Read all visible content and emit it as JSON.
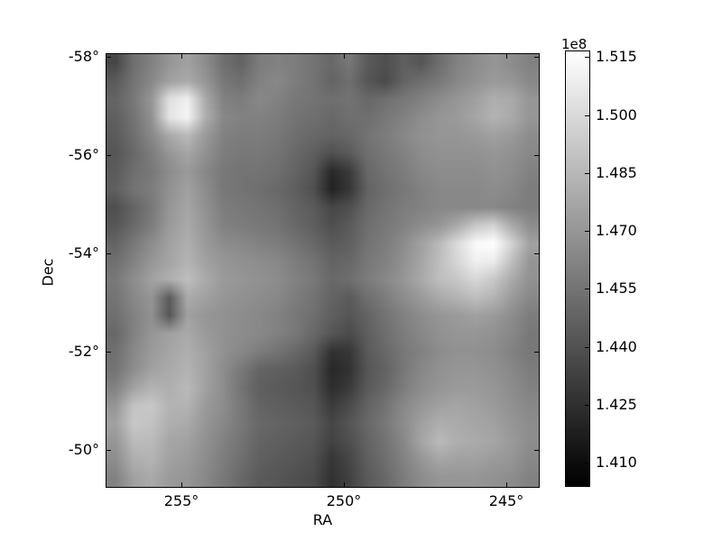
{
  "colors": {
    "foreground": "#000000",
    "background": "#ffffff"
  },
  "chart_data": {
    "type": "heatmap",
    "title": "",
    "xlabel": "RA",
    "ylabel": "Dec",
    "colormap": "gray",
    "grid_on": false,
    "x_axis": {
      "range": [
        257.3,
        244.0
      ],
      "ticks": [
        {
          "value": 255,
          "label": "255°"
        },
        {
          "value": 250,
          "label": "250°"
        },
        {
          "value": 245,
          "label": "245°"
        }
      ]
    },
    "y_axis": {
      "range": [
        -58.05,
        -49.25
      ],
      "ticks": [
        {
          "value": -58,
          "label": "-58°"
        },
        {
          "value": -56,
          "label": "-56°"
        },
        {
          "value": -54,
          "label": "-54°"
        },
        {
          "value": -52,
          "label": "-52°"
        },
        {
          "value": -50,
          "label": "-50°"
        }
      ]
    },
    "colorbar": {
      "offset_label": "1e8",
      "value_scale": "1e8",
      "vmin": 1.404,
      "vmax": 1.5165,
      "ticks": [
        {
          "value": 1.515,
          "label": "1.515"
        },
        {
          "value": 1.5,
          "label": "1.500"
        },
        {
          "value": 1.485,
          "label": "1.485"
        },
        {
          "value": 1.47,
          "label": "1.470"
        },
        {
          "value": 1.455,
          "label": "1.455"
        },
        {
          "value": 1.44,
          "label": "1.440"
        },
        {
          "value": 1.425,
          "label": "1.425"
        },
        {
          "value": 1.41,
          "label": "1.410"
        }
      ]
    },
    "grid_units": "1e8",
    "grid_rows": 24,
    "grid_cols": 24,
    "grid": [
      [
        1.435,
        1.453,
        1.461,
        1.47,
        1.475,
        1.466,
        1.453,
        1.448,
        1.459,
        1.461,
        1.459,
        1.455,
        1.45,
        1.457,
        1.444,
        1.439,
        1.446,
        1.442,
        1.453,
        1.461,
        1.466,
        1.47,
        1.466,
        1.461
      ],
      [
        1.444,
        1.455,
        1.464,
        1.475,
        1.479,
        1.47,
        1.457,
        1.453,
        1.461,
        1.464,
        1.459,
        1.455,
        1.448,
        1.453,
        1.442,
        1.437,
        1.448,
        1.453,
        1.457,
        1.464,
        1.468,
        1.472,
        1.47,
        1.464
      ],
      [
        1.448,
        1.457,
        1.47,
        1.503,
        1.51,
        1.479,
        1.461,
        1.459,
        1.464,
        1.461,
        1.457,
        1.455,
        1.453,
        1.455,
        1.45,
        1.453,
        1.457,
        1.461,
        1.466,
        1.47,
        1.475,
        1.481,
        1.479,
        1.47
      ],
      [
        1.446,
        1.455,
        1.468,
        1.505,
        1.512,
        1.481,
        1.464,
        1.461,
        1.461,
        1.459,
        1.455,
        1.453,
        1.45,
        1.453,
        1.453,
        1.457,
        1.461,
        1.466,
        1.47,
        1.472,
        1.477,
        1.483,
        1.479,
        1.47
      ],
      [
        1.444,
        1.453,
        1.464,
        1.479,
        1.486,
        1.472,
        1.461,
        1.459,
        1.459,
        1.457,
        1.453,
        1.45,
        1.448,
        1.45,
        1.455,
        1.459,
        1.464,
        1.468,
        1.47,
        1.47,
        1.472,
        1.475,
        1.472,
        1.466
      ],
      [
        1.442,
        1.45,
        1.459,
        1.47,
        1.477,
        1.468,
        1.459,
        1.457,
        1.457,
        1.455,
        1.45,
        1.446,
        1.439,
        1.444,
        1.453,
        1.457,
        1.461,
        1.466,
        1.468,
        1.468,
        1.468,
        1.47,
        1.468,
        1.464
      ],
      [
        1.444,
        1.453,
        1.457,
        1.466,
        1.472,
        1.464,
        1.457,
        1.455,
        1.455,
        1.453,
        1.448,
        1.442,
        1.422,
        1.43,
        1.45,
        1.455,
        1.459,
        1.464,
        1.466,
        1.466,
        1.466,
        1.468,
        1.466,
        1.461
      ],
      [
        1.446,
        1.455,
        1.459,
        1.468,
        1.475,
        1.466,
        1.457,
        1.455,
        1.453,
        1.45,
        1.446,
        1.439,
        1.419,
        1.428,
        1.448,
        1.453,
        1.457,
        1.461,
        1.464,
        1.464,
        1.464,
        1.466,
        1.464,
        1.459
      ],
      [
        1.439,
        1.448,
        1.457,
        1.47,
        1.477,
        1.468,
        1.459,
        1.457,
        1.455,
        1.453,
        1.448,
        1.444,
        1.435,
        1.439,
        1.45,
        1.455,
        1.459,
        1.461,
        1.464,
        1.464,
        1.464,
        1.464,
        1.461,
        1.459
      ],
      [
        1.442,
        1.45,
        1.459,
        1.472,
        1.479,
        1.47,
        1.461,
        1.459,
        1.457,
        1.455,
        1.45,
        1.446,
        1.439,
        1.444,
        1.453,
        1.457,
        1.461,
        1.466,
        1.47,
        1.479,
        1.492,
        1.497,
        1.479,
        1.466
      ],
      [
        1.448,
        1.457,
        1.466,
        1.475,
        1.481,
        1.472,
        1.466,
        1.464,
        1.461,
        1.459,
        1.455,
        1.45,
        1.444,
        1.446,
        1.455,
        1.459,
        1.466,
        1.475,
        1.486,
        1.501,
        1.514,
        1.517,
        1.497,
        1.475
      ],
      [
        1.453,
        1.461,
        1.47,
        1.477,
        1.483,
        1.475,
        1.47,
        1.468,
        1.466,
        1.464,
        1.459,
        1.455,
        1.448,
        1.45,
        1.457,
        1.461,
        1.468,
        1.477,
        1.488,
        1.499,
        1.51,
        1.508,
        1.488,
        1.47
      ],
      [
        1.457,
        1.466,
        1.475,
        1.481,
        1.488,
        1.479,
        1.472,
        1.47,
        1.468,
        1.466,
        1.461,
        1.457,
        1.45,
        1.453,
        1.459,
        1.464,
        1.47,
        1.479,
        1.488,
        1.492,
        1.499,
        1.492,
        1.479,
        1.468
      ],
      [
        1.455,
        1.464,
        1.47,
        1.444,
        1.479,
        1.475,
        1.47,
        1.468,
        1.466,
        1.464,
        1.459,
        1.455,
        1.448,
        1.444,
        1.453,
        1.459,
        1.466,
        1.472,
        1.479,
        1.483,
        1.488,
        1.483,
        1.472,
        1.464
      ],
      [
        1.453,
        1.461,
        1.468,
        1.442,
        1.475,
        1.47,
        1.468,
        1.466,
        1.464,
        1.461,
        1.457,
        1.453,
        1.446,
        1.442,
        1.448,
        1.455,
        1.461,
        1.466,
        1.47,
        1.472,
        1.475,
        1.472,
        1.466,
        1.459
      ],
      [
        1.45,
        1.461,
        1.47,
        1.475,
        1.479,
        1.472,
        1.468,
        1.466,
        1.464,
        1.461,
        1.457,
        1.45,
        1.442,
        1.437,
        1.446,
        1.453,
        1.459,
        1.464,
        1.468,
        1.47,
        1.47,
        1.468,
        1.464,
        1.457
      ],
      [
        1.453,
        1.464,
        1.472,
        1.477,
        1.481,
        1.475,
        1.468,
        1.464,
        1.459,
        1.455,
        1.45,
        1.444,
        1.426,
        1.428,
        1.444,
        1.45,
        1.457,
        1.461,
        1.466,
        1.468,
        1.468,
        1.466,
        1.461,
        1.457
      ],
      [
        1.455,
        1.466,
        1.475,
        1.479,
        1.483,
        1.475,
        1.466,
        1.457,
        1.448,
        1.446,
        1.444,
        1.439,
        1.422,
        1.426,
        1.442,
        1.448,
        1.457,
        1.464,
        1.468,
        1.47,
        1.47,
        1.468,
        1.464,
        1.459
      ],
      [
        1.461,
        1.475,
        1.483,
        1.481,
        1.486,
        1.475,
        1.466,
        1.455,
        1.446,
        1.444,
        1.442,
        1.439,
        1.424,
        1.43,
        1.444,
        1.45,
        1.459,
        1.466,
        1.47,
        1.472,
        1.472,
        1.47,
        1.466,
        1.461
      ],
      [
        1.47,
        1.49,
        1.492,
        1.483,
        1.483,
        1.472,
        1.466,
        1.457,
        1.448,
        1.446,
        1.444,
        1.442,
        1.43,
        1.437,
        1.448,
        1.455,
        1.464,
        1.47,
        1.475,
        1.477,
        1.475,
        1.472,
        1.468,
        1.464
      ],
      [
        1.475,
        1.492,
        1.49,
        1.481,
        1.479,
        1.47,
        1.464,
        1.457,
        1.45,
        1.448,
        1.446,
        1.444,
        1.435,
        1.442,
        1.45,
        1.457,
        1.466,
        1.475,
        1.481,
        1.479,
        1.477,
        1.475,
        1.47,
        1.466
      ],
      [
        1.47,
        1.486,
        1.486,
        1.477,
        1.475,
        1.468,
        1.461,
        1.455,
        1.448,
        1.446,
        1.444,
        1.442,
        1.433,
        1.439,
        1.448,
        1.455,
        1.464,
        1.477,
        1.486,
        1.481,
        1.479,
        1.477,
        1.472,
        1.466
      ],
      [
        1.466,
        1.481,
        1.483,
        1.475,
        1.472,
        1.466,
        1.459,
        1.453,
        1.446,
        1.444,
        1.442,
        1.439,
        1.428,
        1.435,
        1.446,
        1.453,
        1.461,
        1.47,
        1.477,
        1.475,
        1.475,
        1.472,
        1.47,
        1.464
      ],
      [
        1.461,
        1.475,
        1.479,
        1.472,
        1.47,
        1.464,
        1.457,
        1.45,
        1.444,
        1.442,
        1.439,
        1.437,
        1.426,
        1.433,
        1.444,
        1.45,
        1.459,
        1.466,
        1.47,
        1.47,
        1.47,
        1.468,
        1.466,
        1.461
      ]
    ]
  }
}
